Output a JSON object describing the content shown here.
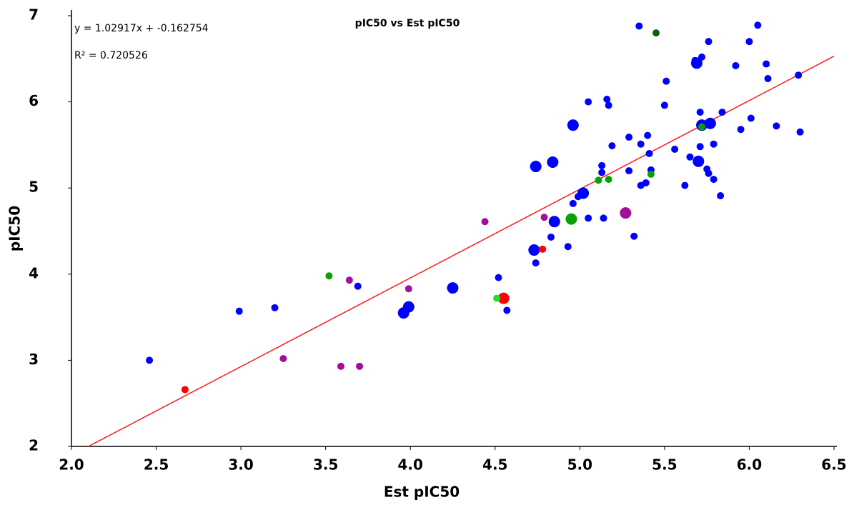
{
  "chart_data": {
    "type": "scatter",
    "title": "pIC50 vs Est pIC50",
    "x_label": "Est pIC50",
    "y_label": "pIC50",
    "annotations": [
      "y = 1.02917x + -0.162754",
      "R² = 0.720526"
    ],
    "xlim": [
      2.0,
      6.5
    ],
    "xticks": [
      {
        "value": 2.0,
        "label": "2.0"
      },
      {
        "value": 2.5,
        "label": "2.5"
      },
      {
        "value": 3.0,
        "label": "3.0"
      },
      {
        "value": 3.5,
        "label": "3.5"
      },
      {
        "value": 4.0,
        "label": "4.0"
      },
      {
        "value": 4.5,
        "label": "4.5"
      },
      {
        "value": 5.0,
        "label": "5.0"
      },
      {
        "value": 5.5,
        "label": "5.5"
      },
      {
        "value": 6.0,
        "label": "6.0"
      },
      {
        "value": 6.5,
        "label": "6.5"
      }
    ],
    "ylim": [
      2,
      7
    ],
    "yticks": [
      2,
      3,
      4,
      5,
      6,
      7
    ],
    "grid": false,
    "series": [
      {
        "color": "#0000ff",
        "radius": 5,
        "x": [
          2.46,
          2.99,
          3.2,
          3.69,
          4.52,
          4.57,
          4.74,
          4.83,
          4.93,
          4.96,
          4.99,
          5.05,
          5.05,
          5.14,
          5.13,
          5.13,
          5.16,
          5.17,
          5.19,
          5.29,
          5.29,
          5.32,
          5.35,
          5.36,
          5.36,
          5.39,
          5.4,
          5.41,
          5.42,
          5.5,
          5.51,
          5.56,
          5.62,
          5.65,
          5.68,
          5.71,
          5.71,
          5.72,
          5.75,
          5.76,
          5.76,
          5.79,
          5.79,
          5.83,
          5.84,
          5.92,
          5.95,
          6.0,
          6.01,
          6.05,
          6.1,
          6.11,
          6.16,
          6.29,
          6.3
        ],
        "values": [
          3.0,
          3.57,
          3.61,
          3.86,
          3.96,
          3.58,
          4.13,
          4.43,
          4.32,
          4.82,
          4.9,
          4.65,
          6.0,
          4.65,
          5.26,
          5.18,
          6.03,
          5.96,
          5.49,
          5.2,
          5.59,
          4.44,
          6.88,
          5.03,
          5.51,
          5.06,
          5.61,
          5.4,
          5.21,
          5.96,
          6.24,
          5.45,
          5.03,
          5.36,
          6.48,
          5.48,
          5.88,
          6.52,
          5.22,
          5.17,
          6.7,
          5.1,
          5.51,
          4.91,
          5.88,
          6.42,
          5.68,
          6.7,
          5.81,
          6.89,
          6.44,
          6.27,
          5.72,
          6.31,
          5.65
        ]
      },
      {
        "color": "#0000ff",
        "radius": 8,
        "x": [
          3.96,
          3.99,
          4.25,
          4.73,
          4.74,
          4.84,
          4.85,
          4.96,
          5.02,
          5.69,
          5.7,
          5.72,
          5.77
        ],
        "values": [
          3.55,
          3.62,
          3.84,
          4.28,
          5.25,
          5.3,
          4.61,
          5.73,
          4.94,
          6.45,
          5.31,
          5.73,
          5.75
        ]
      },
      {
        "color": "#0aa00a",
        "radius": 5,
        "x": [
          3.52,
          5.11,
          5.17,
          5.42,
          5.72
        ],
        "values": [
          3.98,
          5.09,
          5.1,
          5.16,
          5.71
        ]
      },
      {
        "color": "#0aa00a",
        "radius": 8,
        "x": [
          4.95
        ],
        "values": [
          4.64
        ]
      },
      {
        "color": "#a0109a",
        "radius": 5,
        "x": [
          3.25,
          3.59,
          3.64,
          3.7,
          3.99,
          4.44,
          4.79
        ],
        "values": [
          3.02,
          2.93,
          3.93,
          2.93,
          3.83,
          4.61,
          4.66
        ]
      },
      {
        "color": "#a0109a",
        "radius": 8,
        "x": [
          5.27
        ],
        "values": [
          4.71
        ]
      },
      {
        "color": "#ff0000",
        "radius": 5,
        "x": [
          2.67,
          4.78
        ],
        "values": [
          2.66,
          4.29
        ]
      },
      {
        "color": "#ff0000",
        "radius": 8,
        "x": [
          4.55
        ],
        "values": [
          3.72
        ]
      },
      {
        "color": "#22e022",
        "radius": 5,
        "x": [
          4.51
        ],
        "values": [
          3.72
        ]
      },
      {
        "color": "#0b5e0b",
        "radius": 5,
        "x": [
          5.45
        ],
        "values": [
          6.8
        ]
      }
    ],
    "fit": {
      "color": "#ff2020",
      "x": [
        2.1,
        6.5
      ],
      "values": [
        2.0,
        6.53
      ]
    }
  }
}
